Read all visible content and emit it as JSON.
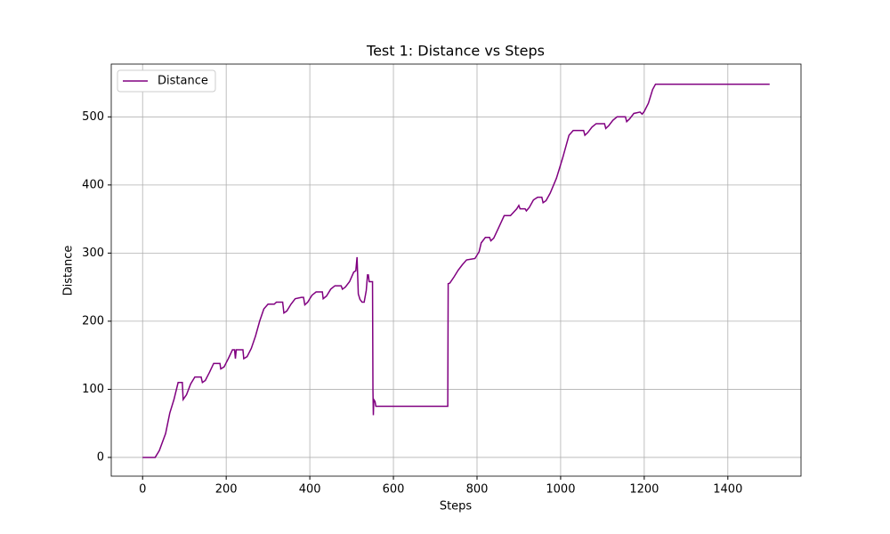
{
  "chart_data": {
    "type": "line",
    "title": "Test 1: Distance vs Steps",
    "x_label": "Steps",
    "y_label": "Distance",
    "x": [
      0,
      30,
      40,
      55,
      65,
      75,
      85,
      95,
      97,
      105,
      115,
      125,
      140,
      143,
      150,
      160,
      170,
      185,
      187,
      195,
      205,
      215,
      220,
      222,
      224,
      240,
      242,
      250,
      260,
      270,
      280,
      290,
      300,
      315,
      320,
      335,
      338,
      345,
      355,
      365,
      380,
      385,
      388,
      395,
      405,
      415,
      430,
      432,
      440,
      450,
      460,
      475,
      478,
      485,
      495,
      505,
      510,
      513,
      516,
      520,
      525,
      530,
      535,
      538,
      540,
      542,
      550,
      551,
      552,
      553,
      556,
      558,
      730,
      731,
      735,
      745,
      755,
      765,
      775,
      785,
      795,
      805,
      810,
      820,
      830,
      833,
      840,
      850,
      865,
      880,
      895,
      900,
      903,
      915,
      918,
      925,
      935,
      945,
      955,
      958,
      965,
      975,
      990,
      1005,
      1020,
      1030,
      1055,
      1058,
      1065,
      1075,
      1085,
      1105,
      1108,
      1115,
      1125,
      1135,
      1155,
      1158,
      1165,
      1175,
      1190,
      1195,
      1200,
      1210,
      1220,
      1227,
      1500
    ],
    "series": [
      {
        "name": "Distance",
        "color": "#800080",
        "values": [
          0,
          0,
          10,
          35,
          65,
          85,
          110,
          110,
          85,
          92,
          108,
          118,
          118,
          110,
          113,
          125,
          138,
          138,
          130,
          133,
          145,
          158,
          158,
          145,
          158,
          158,
          145,
          148,
          160,
          178,
          200,
          218,
          225,
          225,
          228,
          228,
          212,
          215,
          225,
          233,
          235,
          235,
          224,
          228,
          238,
          243,
          243,
          233,
          237,
          247,
          252,
          252,
          247,
          250,
          258,
          272,
          274,
          294,
          240,
          232,
          228,
          228,
          245,
          268,
          268,
          258,
          258,
          100,
          62,
          85,
          82,
          75,
          75,
          255,
          256,
          265,
          275,
          283,
          290,
          291,
          292,
          302,
          315,
          323,
          323,
          318,
          322,
          335,
          355,
          355,
          365,
          370,
          365,
          365,
          362,
          367,
          378,
          382,
          382,
          374,
          377,
          388,
          410,
          440,
          473,
          480,
          480,
          473,
          477,
          485,
          490,
          490,
          483,
          487,
          495,
          500,
          500,
          493,
          497,
          505,
          507,
          504,
          508,
          520,
          540,
          548,
          548
        ]
      }
    ],
    "xlim": [
      -75,
      1575
    ],
    "ylim": [
      -27.5,
      577.5
    ],
    "xticks": [
      0,
      200,
      400,
      600,
      800,
      1000,
      1200,
      1400
    ],
    "yticks": [
      0,
      100,
      200,
      300,
      400,
      500
    ],
    "grid": true,
    "legend": "upper left"
  }
}
